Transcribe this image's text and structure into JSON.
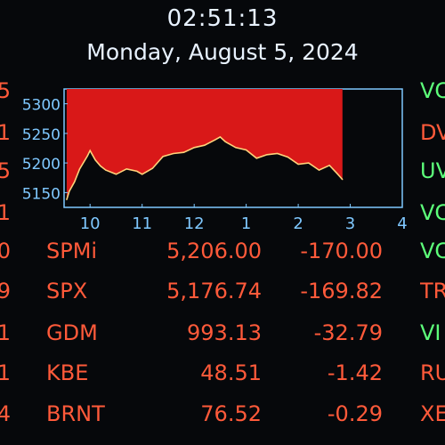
{
  "header": {
    "time": "02:51:13",
    "date": "Monday, August 5, 2024"
  },
  "colors": {
    "background": "#06080b",
    "header_text": "#e8f2ff",
    "axis_cyan": "#7fc8ff",
    "negative_red": "#ff5a3a",
    "positive_green": "#5dff7a",
    "chart_fill": "#d91818",
    "chart_line": "#ffd27a"
  },
  "chart_data": {
    "type": "area",
    "x_tick_labels": [
      "10",
      "11",
      "12",
      "1",
      "2",
      "3",
      "4"
    ],
    "y_tick_labels": [
      "5300",
      "5250",
      "5200",
      "5150"
    ],
    "ylim": [
      5125,
      5325
    ],
    "x": [
      9.55,
      9.6,
      9.7,
      9.8,
      9.95,
      10.0,
      10.1,
      10.2,
      10.3,
      10.5,
      10.7,
      10.9,
      11.0,
      11.2,
      11.4,
      11.6,
      11.8,
      12.0,
      12.2,
      12.4,
      12.5,
      12.6,
      12.8,
      13.0,
      13.2,
      13.4,
      13.6,
      13.8,
      14.0,
      14.2,
      14.4,
      14.6,
      14.75,
      14.85
    ],
    "values": [
      5138,
      5152,
      5168,
      5190,
      5212,
      5221,
      5205,
      5195,
      5188,
      5181,
      5190,
      5186,
      5181,
      5191,
      5211,
      5216,
      5218,
      5226,
      5230,
      5239,
      5244,
      5236,
      5226,
      5222,
      5208,
      5214,
      5216,
      5210,
      5198,
      5200,
      5188,
      5196,
      5182,
      5172
    ],
    "grid": false
  },
  "ticker_rows": [
    {
      "symbol": "SPMi",
      "last": "5,206.00",
      "change": "-170.00"
    },
    {
      "symbol": "SPX",
      "last": "5,176.74",
      "change": "-169.82"
    },
    {
      "symbol": "GDM",
      "last": "993.13",
      "change": "-32.79"
    },
    {
      "symbol": "KBE",
      "last": "48.51",
      "change": "-1.42"
    },
    {
      "symbol": "BRNT",
      "last": "76.52",
      "change": "-0.29"
    }
  ],
  "left_edge_fragments": [
    "5",
    "1",
    "5",
    "1",
    "0",
    "9",
    "1",
    "1",
    "4"
  ],
  "right_edge_fragments": [
    {
      "text": "VC",
      "color": "#5dff7a"
    },
    {
      "text": "DV",
      "color": "#ff5a3a"
    },
    {
      "text": "UV",
      "color": "#5dff7a"
    },
    {
      "text": "VC",
      "color": "#5dff7a"
    },
    {
      "text": "VC",
      "color": "#5dff7a"
    },
    {
      "text": "TR",
      "color": "#ff5a3a"
    },
    {
      "text": "VI",
      "color": "#5dff7a"
    },
    {
      "text": "RU",
      "color": "#ff5a3a"
    },
    {
      "text": "XE",
      "color": "#ff5a3a"
    }
  ]
}
